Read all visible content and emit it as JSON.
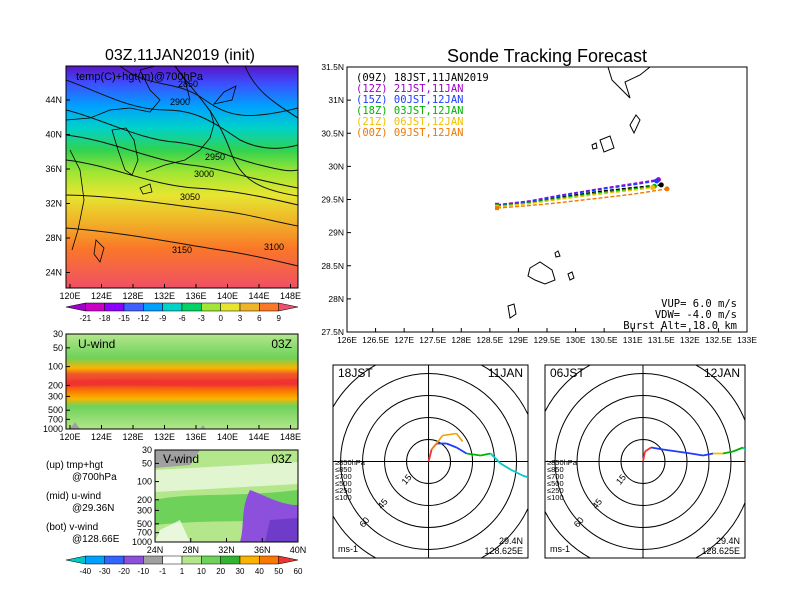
{
  "left_title": "03Z,11JAN2019 (init)",
  "main_title": "Sonde Tracking Forecast",
  "map_panel": {
    "label": "temp(C)+hgt(m)@700hPa",
    "lat_ticks": [
      "44N",
      "40N",
      "36N",
      "32N",
      "28N",
      "24N"
    ],
    "lon_ticks": [
      "120E",
      "124E",
      "128E",
      "132E",
      "136E",
      "140E",
      "144E",
      "148E"
    ],
    "contour_labels": [
      "2850",
      "2900",
      "2950",
      "3000",
      "3050",
      "3100",
      "3150"
    ],
    "colorbar_labels": [
      "-21",
      "-18",
      "-15",
      "-12",
      "-9",
      "-6",
      "-3",
      "0",
      "3",
      "6",
      "9"
    ],
    "colorbar_colors": [
      "#a000c8",
      "#c800c8",
      "#8c00ff",
      "#4060ff",
      "#00a0ff",
      "#00d2c8",
      "#00d264",
      "#a0e632",
      "#e6e632",
      "#f0b428",
      "#fa7828",
      "#f0506e"
    ]
  },
  "uwind_panel": {
    "label": "U-wind",
    "time_label": "03Z",
    "p_ticks": [
      "30",
      "50",
      "100",
      "200",
      "300",
      "500",
      "700",
      "1000"
    ],
    "lon_ticks": [
      "120E",
      "124E",
      "128E",
      "132E",
      "136E",
      "140E",
      "144E",
      "148E"
    ]
  },
  "vwind_panel": {
    "label": "V-wind",
    "time_label": "03Z",
    "p_ticks": [
      "30",
      "50",
      "100",
      "200",
      "300",
      "500",
      "700",
      "1000"
    ],
    "lat_ticks": [
      "24N",
      "28N",
      "32N",
      "36N",
      "40N"
    ],
    "colorbar_labels": [
      "-40",
      "-30",
      "-20",
      "-10",
      "-1",
      "1",
      "10",
      "20",
      "30",
      "40",
      "50",
      "60"
    ],
    "colorbar_colors": [
      "#00c8c8",
      "#00a0ff",
      "#3264ff",
      "#8c50dc",
      "#a0a0a0",
      "#ffffff",
      "#b4e68c",
      "#6ed25a",
      "#32b432",
      "#fab400",
      "#fa7800",
      "#f03232"
    ]
  },
  "side_legend": [
    {
      "label": "(up) tmp+hgt",
      "sub": "@700hPa"
    },
    {
      "label": "(mid) u-wind",
      "sub": "@29.36N"
    },
    {
      "label": "(bot) v-wind",
      "sub": "@128.66E"
    }
  ],
  "track_panel": {
    "lat_ticks": [
      "31.5N",
      "31N",
      "30.5N",
      "30N",
      "29.5N",
      "29N",
      "28.5N",
      "28N",
      "27.5N"
    ],
    "lon_ticks": [
      "126E",
      "126.5E",
      "127E",
      "127.5E",
      "128E",
      "128.5E",
      "129E",
      "129.5E",
      "130E",
      "130.5E",
      "131E",
      "131.5E",
      "132E",
      "132.5E",
      "133E"
    ],
    "vup": "VUP= 6.0 m/s",
    "vdw": "VDW= -4.0 m/s",
    "burst": "Burst Alt= 18.0 km"
  },
  "chart_data": {
    "type": "line",
    "title": "Sonde Tracking Forecast",
    "xlim": [
      126,
      133
    ],
    "ylim": [
      27.5,
      31.5
    ],
    "series": [
      {
        "name": "(09Z)  18JST,11JAN2019",
        "color": "#000000",
        "x": [
          128.625,
          129.2,
          129.7,
          130.4,
          131.0,
          131.5
        ],
        "y": [
          29.4,
          29.46,
          29.53,
          29.62,
          29.68,
          29.72
        ]
      },
      {
        "name": "(12Z)  21JST,11JAN",
        "color": "#a000c8",
        "x": [
          128.625,
          129.2,
          129.7,
          130.4,
          131.0,
          131.45
        ],
        "y": [
          29.42,
          29.48,
          29.56,
          29.66,
          29.74,
          29.8
        ]
      },
      {
        "name": "(15Z)  00JST,12JAN",
        "color": "#1e3cff",
        "x": [
          128.625,
          129.2,
          129.7,
          130.4,
          131.0,
          131.42
        ],
        "y": [
          29.41,
          29.47,
          29.55,
          29.65,
          29.72,
          29.78
        ]
      },
      {
        "name": "(18Z)  03JST,12JAN",
        "color": "#00b400",
        "x": [
          128.625,
          129.2,
          129.7,
          130.4,
          131.0,
          131.38
        ],
        "y": [
          29.4,
          29.45,
          29.52,
          29.6,
          29.66,
          29.7
        ]
      },
      {
        "name": "(21Z)  06JST,12JAN",
        "color": "#f0c000",
        "x": [
          128.625,
          129.2,
          129.7,
          130.4,
          131.0,
          131.35
        ],
        "y": [
          29.39,
          29.44,
          29.5,
          29.58,
          29.64,
          29.68
        ]
      },
      {
        "name": "(00Z)  09JST,12JAN",
        "color": "#f07800",
        "x": [
          128.625,
          129.2,
          129.7,
          130.4,
          131.0,
          131.6
        ],
        "y": [
          29.37,
          29.41,
          29.45,
          29.52,
          29.58,
          29.66
        ]
      }
    ]
  },
  "hodographs": [
    {
      "jst": "18JST",
      "date": "11JAN",
      "lat": "29.4N",
      "lon": "128.625E",
      "unit": "ms-1",
      "ring_labels": [
        "15",
        "45",
        "60"
      ],
      "pressure_legend": [
        "≥850hPa",
        "≤850",
        "≤700",
        "≤500",
        "≤250",
        "≤100"
      ],
      "pressure_colors": [
        "#f03232",
        "#fa7800",
        "#f0c000",
        "#00b400",
        "#00c8c8",
        "#1e3cff"
      ],
      "track": [
        [
          0,
          0
        ],
        [
          3,
          -12
        ],
        [
          8,
          -18
        ],
        [
          18,
          -18
        ],
        [
          28,
          -14
        ],
        [
          38,
          -8
        ],
        [
          52,
          -6
        ],
        [
          62,
          -8
        ],
        [
          72,
          2
        ],
        [
          82,
          8
        ],
        [
          94,
          14
        ],
        [
          100,
          16
        ]
      ],
      "track_colors": [
        "#f03232",
        "#fa7800",
        "#1e3cff",
        "#1e3cff",
        "#1e3cff",
        "#00b400",
        "#00b400",
        "#00c8c8",
        "#00c8c8",
        "#00c8c8",
        "#00c8c8"
      ],
      "branch": [
        [
          8,
          -18
        ],
        [
          14,
          -26
        ],
        [
          28,
          -28
        ],
        [
          34,
          -20
        ]
      ],
      "branch_color": "#f0a000"
    },
    {
      "jst": "06JST",
      "date": "12JAN",
      "lat": "29.4N",
      "lon": "128.625E",
      "unit": "ms-1",
      "ring_labels": [
        "15",
        "45",
        "60"
      ],
      "pressure_legend": [
        "≥850hPa",
        "≤850",
        "≤700",
        "≤500",
        "≤250",
        "≤100"
      ],
      "pressure_colors": [
        "#f03232",
        "#fa7800",
        "#f0c000",
        "#00b400",
        "#00c8c8",
        "#1e3cff"
      ],
      "track": [
        [
          0,
          0
        ],
        [
          2,
          -10
        ],
        [
          8,
          -14
        ],
        [
          20,
          -12
        ],
        [
          34,
          -10
        ],
        [
          48,
          -8
        ],
        [
          60,
          -6
        ],
        [
          70,
          -8
        ],
        [
          80,
          -8
        ],
        [
          90,
          -10
        ],
        [
          100,
          -14
        ],
        [
          104,
          -10
        ]
      ],
      "track_colors": [
        "#f03232",
        "#f03232",
        "#1e3cff",
        "#1e3cff",
        "#1e3cff",
        "#1e3cff",
        "#1e3cff",
        "#f0c000",
        "#00b400",
        "#00b400",
        "#00c8c8"
      ],
      "branch": [],
      "branch_color": "#f0a000"
    }
  ]
}
